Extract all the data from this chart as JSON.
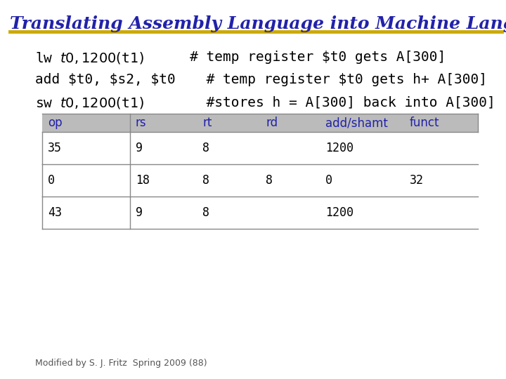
{
  "title": "Translating Assembly Language into Machine Language",
  "title_color": "#2222aa",
  "title_fontsize": 18,
  "underline_color": "#ccaa00",
  "bg_color": "#ffffff",
  "code_lines": [
    {
      "text": "lw $t0, 1200 ($t1)",
      "comment": "# temp register $t0 gets A[300]"
    },
    {
      "text": "add $t0, $s2, $t0",
      "comment": "  # temp register $t0 gets h+ A[300]"
    },
    {
      "text": "sw $t0, 1200($t1)",
      "comment": "  #stores h = A[300] back into A[300]"
    }
  ],
  "code_color": "#000000",
  "comment_color": "#000000",
  "code_fontsize": 14,
  "table_header": [
    "op",
    "rs",
    "rt",
    "rd",
    "add/shamt",
    "funct"
  ],
  "table_header_color": "#2222aa",
  "table_rows": [
    [
      "35",
      "9",
      "8",
      "",
      "1200",
      ""
    ],
    [
      "0",
      "18",
      "8",
      "8",
      "0",
      "32"
    ],
    [
      "43",
      "9",
      "8",
      "",
      "1200",
      ""
    ]
  ],
  "table_data_color": "#000000",
  "table_header_bg": "#bbbbbb",
  "table_fontsize": 12,
  "footer": "Modified by S. J. Fritz  Spring 2009 (88)",
  "footer_fontsize": 9,
  "footer_color": "#555555"
}
